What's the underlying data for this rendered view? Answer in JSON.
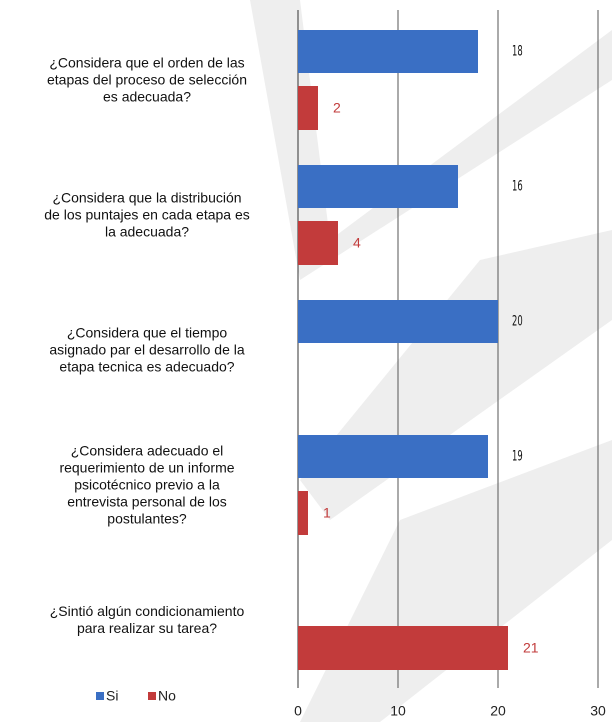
{
  "chart_data": {
    "type": "bar",
    "orientation": "horizontal",
    "categories": [
      "¿Considera que el orden de las\netapas del proceso de selección\nes adecuada?",
      "¿Considera que la distribución\nde los puntajes en cada etapa es\nla adecuada?",
      "¿Considera que el tiempo\nasignado par el desarrollo de la\netapa tecnica es adecuado?",
      "¿Considera adecuado el\nrequerimiento de un informe\npsicotécnico previo a la\nentrevista personal de los\npostulantes?",
      "¿Sintió algún condicionamiento\npara realizar su tarea?"
    ],
    "series": [
      {
        "name": "Si",
        "color": "#3a6fc4",
        "values": [
          18,
          16,
          20,
          19,
          null
        ]
      },
      {
        "name": "No",
        "color": "#c23b3b",
        "values": [
          2,
          4,
          null,
          1,
          21
        ]
      }
    ],
    "xlim": [
      0,
      30
    ],
    "xticks": [
      0,
      10,
      20,
      30
    ],
    "grid": true,
    "legend": "bottom-left"
  }
}
